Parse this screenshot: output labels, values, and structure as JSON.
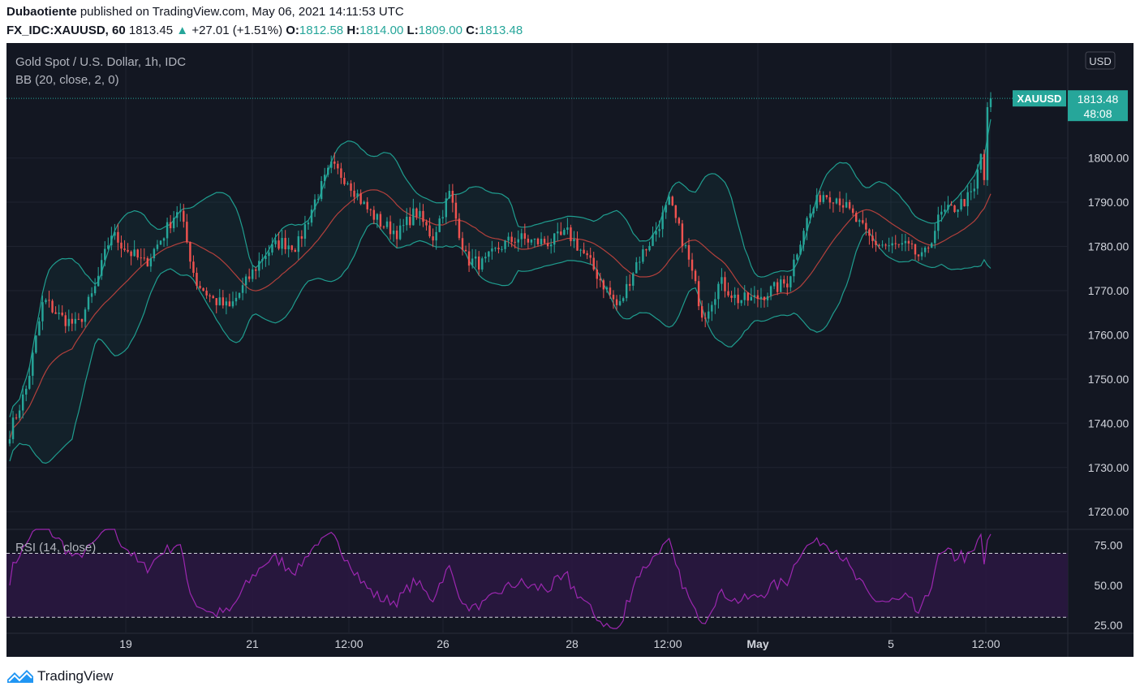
{
  "header": {
    "author": "Dubaotiente",
    "published_text": "published on TradingView.com, May 06, 2021 14:11:53 UTC",
    "symbol": "FX_IDC:XAUUSD, 60",
    "price": "1813.45",
    "up_arrow": "▲",
    "change": "+27.01 (+1.51%)",
    "o_label": "O:",
    "o_value": "1812.58",
    "h_label": "H:",
    "h_value": "1814.00",
    "l_label": "L:",
    "l_value": "1809.00",
    "c_label": "C:",
    "c_value": "1813.48"
  },
  "chart": {
    "title": "Gold Spot / U.S. Dollar, 1h, IDC",
    "indicator_bb": "BB (20, close, 2, 0)",
    "indicator_rsi": "RSI (14, close)",
    "currency_button": "USD",
    "price_tag_symbol": "XAUUSD",
    "price_tag_value": "1813.48",
    "price_tag_timer": "48:08"
  },
  "footer": {
    "brand": "TradingView",
    "logo_icon": "tradingview-logo-icon"
  },
  "colors": {
    "background": "#131722",
    "up": "#26a69a",
    "down": "#ef5350",
    "bb_band": "#1f9d8f",
    "bb_basis": "#b2403c",
    "rsi_line": "#9c27b0",
    "rsi_fill": "#2a1740"
  },
  "chart_data": [
    {
      "type": "candlestick",
      "title": "Gold Spot / U.S. Dollar, 1h, IDC",
      "x_tick_labels": [
        "19",
        "21",
        "12:00",
        "26",
        "28",
        "12:00",
        "May",
        "5",
        "12:00"
      ],
      "y_tick_labels": [
        "1720.00",
        "1730.00",
        "1740.00",
        "1750.00",
        "1760.00",
        "1770.00",
        "1780.00",
        "1790.00",
        "1800.00"
      ],
      "ylim": [
        1716,
        1826
      ],
      "last_price": 1813.48,
      "close_path": [
        1738,
        1748,
        1768,
        1764,
        1762,
        1770,
        1783,
        1779,
        1776,
        1782,
        1789,
        1772,
        1768,
        1766,
        1772,
        1778,
        1781,
        1780,
        1790,
        1798,
        1795,
        1789,
        1785,
        1783,
        1788,
        1782,
        1792,
        1777,
        1776,
        1780,
        1782,
        1781,
        1781,
        1783,
        1778,
        1772,
        1766,
        1776,
        1782,
        1790,
        1779,
        1764,
        1772,
        1768,
        1768,
        1770,
        1772,
        1785,
        1792,
        1791,
        1786,
        1781,
        1780,
        1780,
        1777,
        1787,
        1789,
        1792,
        1813
      ]
    },
    {
      "type": "line",
      "title": "RSI (14, close)",
      "y_tick_labels": [
        "25.00",
        "50.00",
        "75.00"
      ],
      "ylim": [
        20,
        85
      ],
      "reference_lines": [
        30,
        70
      ],
      "last_value": 82
    }
  ]
}
